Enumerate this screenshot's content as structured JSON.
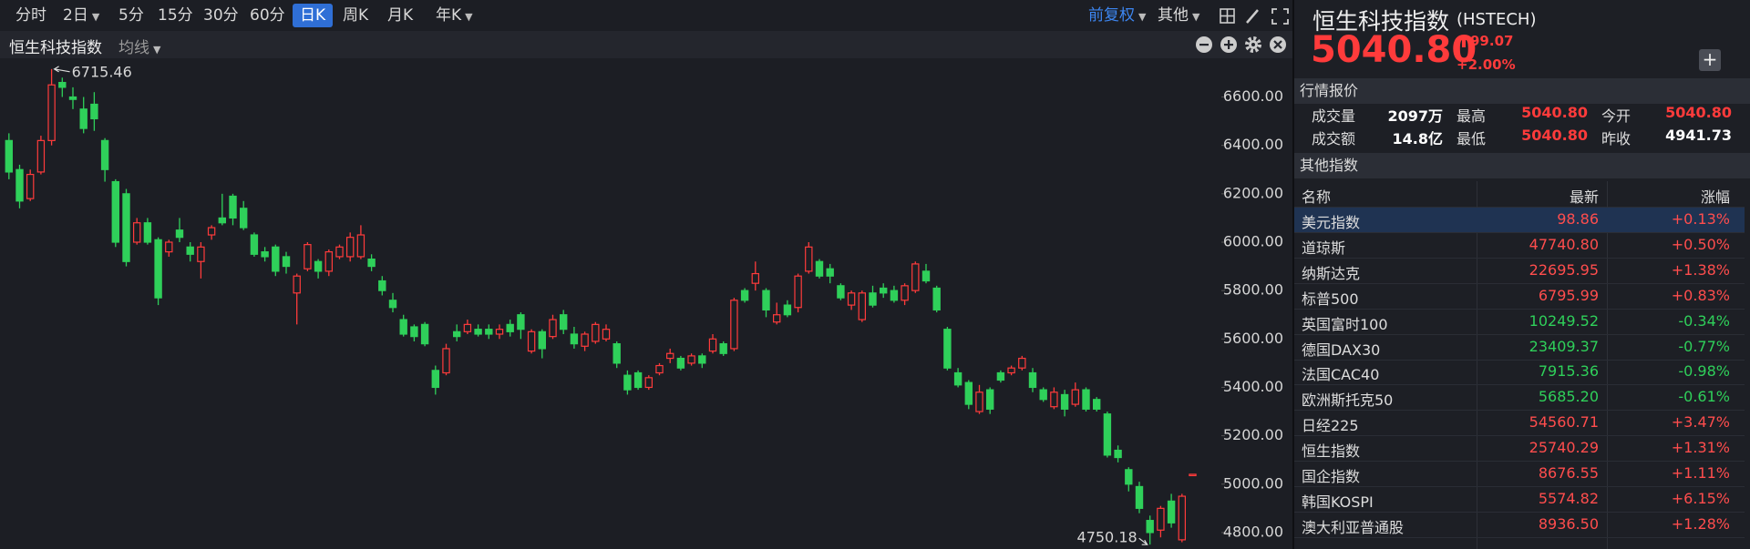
{
  "toolbar": {
    "periods": [
      "分时",
      "2日",
      "5分",
      "15分",
      "30分",
      "60分",
      "日K",
      "周K",
      "月K",
      "年K"
    ],
    "adjust": "前复权",
    "other": "其他"
  },
  "chart_header": {
    "name": "恒生科技指数",
    "ma": "均线"
  },
  "chart_data": {
    "type": "candlestick",
    "up_color": "#ff3b3b",
    "down_color": "#2fd05a",
    "ylim": [
      4732,
      6760
    ],
    "yticks": [
      {
        "value": 4800,
        "label": "4800.00"
      },
      {
        "value": 5000,
        "label": "5000.00"
      },
      {
        "value": 5200,
        "label": "5200.00"
      },
      {
        "value": 5400,
        "label": "5400.00"
      },
      {
        "value": 5600,
        "label": "5600.00"
      },
      {
        "value": 5800,
        "label": "5800.00"
      },
      {
        "value": 6000,
        "label": "6000.00"
      },
      {
        "value": 6200,
        "label": "6200.00"
      },
      {
        "value": 6400,
        "label": "6400.00"
      },
      {
        "value": 6600,
        "label": "6600.00"
      }
    ],
    "high_label": 6715.46,
    "low_label": 4750.18,
    "candles": [
      [
        6420,
        6450,
        6260,
        6290
      ],
      [
        6300,
        6320,
        6140,
        6170
      ],
      [
        6180,
        6300,
        6170,
        6280
      ],
      [
        6290,
        6440,
        6280,
        6420
      ],
      [
        6420,
        6715.46,
        6400,
        6650
      ],
      [
        6660,
        6680,
        6600,
        6640
      ],
      [
        6600,
        6640,
        6550,
        6590
      ],
      [
        6550,
        6600,
        6450,
        6470
      ],
      [
        6570,
        6620,
        6460,
        6510
      ],
      [
        6420,
        6430,
        6250,
        6300
      ],
      [
        6250,
        6260,
        5980,
        6000
      ],
      [
        6200,
        6220,
        5900,
        5920
      ],
      [
        6000,
        6100,
        5990,
        6080
      ],
      [
        6080,
        6100,
        5990,
        6000
      ],
      [
        6010,
        6020,
        5740,
        5770
      ],
      [
        5960,
        6010,
        5940,
        6000
      ],
      [
        6050,
        6100,
        6000,
        6020
      ],
      [
        5980,
        6000,
        5920,
        5950
      ],
      [
        5920,
        6000,
        5850,
        5980
      ],
      [
        6030,
        6070,
        6010,
        6060
      ],
      [
        6100,
        6200,
        6070,
        6080
      ],
      [
        6190,
        6200,
        6070,
        6100
      ],
      [
        6140,
        6170,
        6050,
        6060
      ],
      [
        6030,
        6040,
        5940,
        5950
      ],
      [
        5960,
        5980,
        5920,
        5940
      ],
      [
        5980,
        5990,
        5860,
        5880
      ],
      [
        5940,
        5960,
        5870,
        5900
      ],
      [
        5790,
        5870,
        5660,
        5860
      ],
      [
        5890,
        6000,
        5880,
        5990
      ],
      [
        5920,
        5930,
        5850,
        5880
      ],
      [
        5880,
        5970,
        5860,
        5960
      ],
      [
        5940,
        5990,
        5930,
        5980
      ],
      [
        5940,
        6040,
        5920,
        6020
      ],
      [
        5940,
        6070,
        5930,
        6030
      ],
      [
        5930,
        5950,
        5880,
        5900
      ],
      [
        5840,
        5860,
        5780,
        5800
      ],
      [
        5760,
        5790,
        5710,
        5730
      ],
      [
        5680,
        5700,
        5610,
        5620
      ],
      [
        5650,
        5660,
        5590,
        5610
      ],
      [
        5660,
        5670,
        5570,
        5580
      ],
      [
        5470,
        5490,
        5370,
        5400
      ],
      [
        5460,
        5580,
        5450,
        5560
      ],
      [
        5630,
        5660,
        5590,
        5610
      ],
      [
        5630,
        5680,
        5620,
        5660
      ],
      [
        5640,
        5660,
        5610,
        5620
      ],
      [
        5640,
        5660,
        5600,
        5620
      ],
      [
        5620,
        5660,
        5600,
        5640
      ],
      [
        5660,
        5680,
        5610,
        5630
      ],
      [
        5700,
        5710,
        5600,
        5640
      ],
      [
        5550,
        5640,
        5540,
        5630
      ],
      [
        5630,
        5640,
        5520,
        5560
      ],
      [
        5610,
        5700,
        5600,
        5680
      ],
      [
        5700,
        5720,
        5620,
        5640
      ],
      [
        5620,
        5650,
        5560,
        5580
      ],
      [
        5570,
        5630,
        5550,
        5620
      ],
      [
        5590,
        5670,
        5580,
        5660
      ],
      [
        5600,
        5660,
        5590,
        5640
      ],
      [
        5580,
        5590,
        5480,
        5500
      ],
      [
        5450,
        5470,
        5370,
        5390
      ],
      [
        5460,
        5470,
        5390,
        5400
      ],
      [
        5400,
        5450,
        5390,
        5440
      ],
      [
        5460,
        5500,
        5450,
        5490
      ],
      [
        5520,
        5560,
        5500,
        5540
      ],
      [
        5520,
        5530,
        5470,
        5480
      ],
      [
        5500,
        5540,
        5490,
        5530
      ],
      [
        5530,
        5540,
        5480,
        5500
      ],
      [
        5550,
        5620,
        5540,
        5600
      ],
      [
        5580,
        5590,
        5530,
        5540
      ],
      [
        5560,
        5770,
        5550,
        5760
      ],
      [
        5800,
        5810,
        5750,
        5760
      ],
      [
        5830,
        5920,
        5800,
        5870
      ],
      [
        5800,
        5810,
        5690,
        5720
      ],
      [
        5670,
        5750,
        5660,
        5700
      ],
      [
        5740,
        5760,
        5690,
        5700
      ],
      [
        5730,
        5870,
        5710,
        5860
      ],
      [
        5880,
        6000,
        5870,
        5980
      ],
      [
        5920,
        5930,
        5850,
        5860
      ],
      [
        5890,
        5910,
        5830,
        5860
      ],
      [
        5820,
        5830,
        5760,
        5770
      ],
      [
        5740,
        5800,
        5720,
        5790
      ],
      [
        5680,
        5800,
        5670,
        5790
      ],
      [
        5790,
        5820,
        5730,
        5740
      ],
      [
        5810,
        5830,
        5770,
        5790
      ],
      [
        5800,
        5820,
        5750,
        5760
      ],
      [
        5760,
        5830,
        5740,
        5820
      ],
      [
        5800,
        5920,
        5790,
        5910
      ],
      [
        5880,
        5910,
        5830,
        5840
      ],
      [
        5810,
        5820,
        5710,
        5720
      ],
      [
        5640,
        5650,
        5470,
        5480
      ],
      [
        5460,
        5480,
        5400,
        5410
      ],
      [
        5420,
        5430,
        5310,
        5330
      ],
      [
        5300,
        5410,
        5290,
        5380
      ],
      [
        5390,
        5400,
        5290,
        5310
      ],
      [
        5460,
        5470,
        5420,
        5430
      ],
      [
        5460,
        5490,
        5450,
        5480
      ],
      [
        5480,
        5530,
        5470,
        5520
      ],
      [
        5460,
        5480,
        5380,
        5400
      ],
      [
        5390,
        5400,
        5340,
        5350
      ],
      [
        5320,
        5400,
        5310,
        5380
      ],
      [
        5370,
        5390,
        5280,
        5310
      ],
      [
        5330,
        5420,
        5320,
        5390
      ],
      [
        5390,
        5400,
        5300,
        5310
      ],
      [
        5350,
        5360,
        5300,
        5310
      ],
      [
        5290,
        5300,
        5110,
        5120
      ],
      [
        5140,
        5160,
        5090,
        5110
      ],
      [
        5060,
        5070,
        4970,
        5000
      ],
      [
        4990,
        5010,
        4880,
        4900
      ],
      [
        4850,
        4870,
        4750.18,
        4800
      ],
      [
        4810,
        4910,
        4780,
        4900
      ],
      [
        4930,
        4960,
        4820,
        4840
      ],
      [
        4770,
        4960,
        4760,
        4950
      ],
      [
        5040.8,
        5040.8,
        5040.8,
        5040.8
      ]
    ]
  },
  "quote": {
    "name": "恒生科技指数",
    "code": "(HSTECH)",
    "price": "5040.80",
    "change": "99.07",
    "change_pct": "+2.00%",
    "add": "+",
    "section": "行情报价",
    "rows": [
      [
        "成交量",
        "2097万",
        "最高",
        "5040.80",
        "今开",
        "5040.80"
      ],
      [
        "成交额",
        "14.8亿",
        "最低",
        "5040.80",
        "昨收",
        "4941.73"
      ]
    ]
  },
  "other_indices": {
    "title": "其他指数",
    "header": [
      "名称",
      "最新",
      "涨幅"
    ],
    "rows": [
      [
        "美元指数",
        "98.86",
        "+0.13%",
        "#ff4d4d"
      ],
      [
        "道琼斯",
        "47740.80",
        "+0.50%",
        "#ff4d4d"
      ],
      [
        "纳斯达克",
        "22695.95",
        "+1.38%",
        "#ff4d4d"
      ],
      [
        "标普500",
        "6795.99",
        "+0.83%",
        "#ff4d4d"
      ],
      [
        "英国富时100",
        "10249.52",
        "-0.34%",
        "#2fd05a"
      ],
      [
        "德国DAX30",
        "23409.37",
        "-0.77%",
        "#2fd05a"
      ],
      [
        "法国CAC40",
        "7915.36",
        "-0.98%",
        "#2fd05a"
      ],
      [
        "欧洲斯托克50",
        "5685.20",
        "-0.61%",
        "#2fd05a"
      ],
      [
        "日经225",
        "54560.71",
        "+3.47%",
        "#ff4d4d"
      ],
      [
        "恒生指数",
        "25740.29",
        "+1.31%",
        "#ff4d4d"
      ],
      [
        "国企指数",
        "8676.55",
        "+1.11%",
        "#ff4d4d"
      ],
      [
        "韩国KOSPI",
        "5574.82",
        "+6.15%",
        "#ff4d4d"
      ],
      [
        "澳大利亚普通股",
        "8936.50",
        "+1.28%",
        "#ff4d4d"
      ]
    ]
  }
}
